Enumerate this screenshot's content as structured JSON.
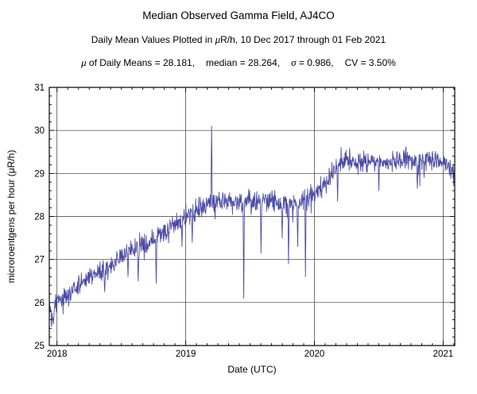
{
  "header": {
    "title": "Median Observed Gamma Field, AJ4CO",
    "subtitle_pre": "Daily Mean Values Plotted in ",
    "subtitle_mu": "μ",
    "subtitle_post": "R/h, 10 Dec 2017 through 01 Feb 2021",
    "stats_mu_sym": "μ",
    "stats_mu_text": " of Daily Means = 28.181,",
    "stats_median_text": "median = 28.264,",
    "stats_sigma_sym": "σ",
    "stats_sigma_text": " = 0.986,",
    "stats_cv_text": "CV = 3.50%"
  },
  "chart_data": {
    "type": "line",
    "title": "Median Observed Gamma Field, AJ4CO",
    "subtitle": "Daily Mean Values Plotted in μR/h, 10 Dec 2017 through 01 Feb 2021",
    "stats": {
      "mu_of_daily_means": 28.181,
      "median": 28.264,
      "sigma": 0.986,
      "cv": "3.50%"
    },
    "xlabel": "Date (UTC)",
    "ylabel": "microroentgens per hour (μR/h)",
    "xlim": [
      2017.94,
      2021.09
    ],
    "ylim": [
      25,
      31
    ],
    "x_ticks": [
      2018,
      2019,
      2020,
      2021
    ],
    "x_tick_labels": [
      "2018",
      "2019",
      "2020",
      "2021"
    ],
    "y_ticks": [
      25,
      26,
      27,
      28,
      29,
      30,
      31
    ],
    "y_tick_labels": [
      "25",
      "26",
      "27",
      "28",
      "29",
      "30",
      "31"
    ],
    "grid": true,
    "legend": "none",
    "line_color": "#4c4ca6",
    "frame_color": "#000000",
    "grid_color": "#333333",
    "series": [
      {
        "name": "daily-mean-gamma",
        "points_per_span": 1150,
        "noise_sd": 0.12,
        "downspike_prob": 0.035,
        "downspike_max": 0.45,
        "keypoints": [
          [
            2017.94,
            25.95
          ],
          [
            2017.97,
            25.75
          ],
          [
            2018.0,
            26.05
          ],
          [
            2018.08,
            26.15
          ],
          [
            2018.17,
            26.4
          ],
          [
            2018.25,
            26.6
          ],
          [
            2018.33,
            26.7
          ],
          [
            2018.42,
            26.85
          ],
          [
            2018.5,
            27.1
          ],
          [
            2018.58,
            27.25
          ],
          [
            2018.67,
            27.3
          ],
          [
            2018.75,
            27.45
          ],
          [
            2018.83,
            27.6
          ],
          [
            2018.92,
            27.85
          ],
          [
            2019.0,
            28.05
          ],
          [
            2019.08,
            28.15
          ],
          [
            2019.17,
            28.25
          ],
          [
            2019.25,
            28.3
          ],
          [
            2019.33,
            28.3
          ],
          [
            2019.42,
            28.35
          ],
          [
            2019.5,
            28.3
          ],
          [
            2019.58,
            28.35
          ],
          [
            2019.67,
            28.4
          ],
          [
            2019.75,
            28.25
          ],
          [
            2019.83,
            28.3
          ],
          [
            2019.92,
            28.35
          ],
          [
            2020.0,
            28.55
          ],
          [
            2020.08,
            28.75
          ],
          [
            2020.17,
            29.1
          ],
          [
            2020.25,
            29.3
          ],
          [
            2020.33,
            29.25
          ],
          [
            2020.42,
            29.3
          ],
          [
            2020.5,
            29.3
          ],
          [
            2020.58,
            29.25
          ],
          [
            2020.67,
            29.3
          ],
          [
            2020.75,
            29.3
          ],
          [
            2020.83,
            29.3
          ],
          [
            2020.92,
            29.3
          ],
          [
            2021.0,
            29.25
          ],
          [
            2021.09,
            29.05
          ]
        ],
        "events": [
          [
            2017.965,
            25.6
          ],
          [
            2018.37,
            26.25
          ],
          [
            2018.55,
            26.6
          ],
          [
            2018.63,
            26.5
          ],
          [
            2018.77,
            26.45
          ],
          [
            2018.97,
            27.3
          ],
          [
            2019.05,
            27.4
          ],
          [
            2019.2,
            30.1
          ],
          [
            2019.45,
            26.1
          ],
          [
            2019.585,
            27.15
          ],
          [
            2019.75,
            27.5
          ],
          [
            2019.8,
            26.9
          ],
          [
            2019.87,
            27.3
          ],
          [
            2019.93,
            26.6
          ],
          [
            2020.18,
            28.35
          ],
          [
            2020.5,
            28.6
          ],
          [
            2020.8,
            28.65
          ]
        ]
      }
    ]
  }
}
